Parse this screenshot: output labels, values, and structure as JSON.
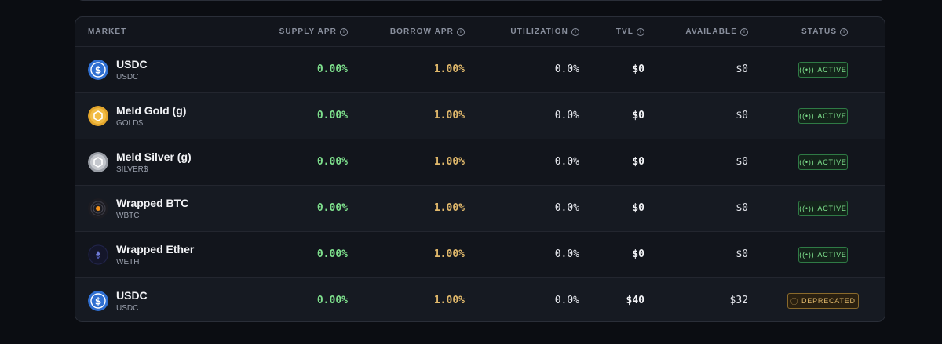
{
  "headers": {
    "market": "MARKET",
    "supply_apr": "SUPPLY APR",
    "borrow_apr": "BORROW APR",
    "utilization": "UTILIZATION",
    "tvl": "TVL",
    "available": "AVAILABLE",
    "status": "STATUS"
  },
  "rows": [
    {
      "name": "USDC",
      "symbol": "USDC",
      "icon": "usdc-icon",
      "supply": "0.00%",
      "borrow": "1.00%",
      "utilization": "0.0%",
      "tvl": "$0",
      "available": "$0",
      "status": "ACTIVE"
    },
    {
      "name": "Meld Gold (g)",
      "symbol": "GOLD$",
      "icon": "gold-icon",
      "supply": "0.00%",
      "borrow": "1.00%",
      "utilization": "0.0%",
      "tvl": "$0",
      "available": "$0",
      "status": "ACTIVE"
    },
    {
      "name": "Meld Silver (g)",
      "symbol": "SILVER$",
      "icon": "silver-icon",
      "supply": "0.00%",
      "borrow": "1.00%",
      "utilization": "0.0%",
      "tvl": "$0",
      "available": "$0",
      "status": "ACTIVE"
    },
    {
      "name": "Wrapped BTC",
      "symbol": "WBTC",
      "icon": "wbtc-icon",
      "supply": "0.00%",
      "borrow": "1.00%",
      "utilization": "0.0%",
      "tvl": "$0",
      "available": "$0",
      "status": "ACTIVE"
    },
    {
      "name": "Wrapped Ether",
      "symbol": "WETH",
      "icon": "weth-icon",
      "supply": "0.00%",
      "borrow": "1.00%",
      "utilization": "0.0%",
      "tvl": "$0",
      "available": "$0",
      "status": "ACTIVE"
    },
    {
      "name": "USDC",
      "symbol": "USDC",
      "icon": "usdc-icon",
      "supply": "0.00%",
      "borrow": "1.00%",
      "utilization": "0.0%",
      "tvl": "$40",
      "available": "$32",
      "status": "DEPRECATED"
    }
  ],
  "colors": {
    "supply": "#7ee08d",
    "borrow": "#e0b86b",
    "active": "#7ee08d",
    "deprecated": "#e0b86b"
  }
}
